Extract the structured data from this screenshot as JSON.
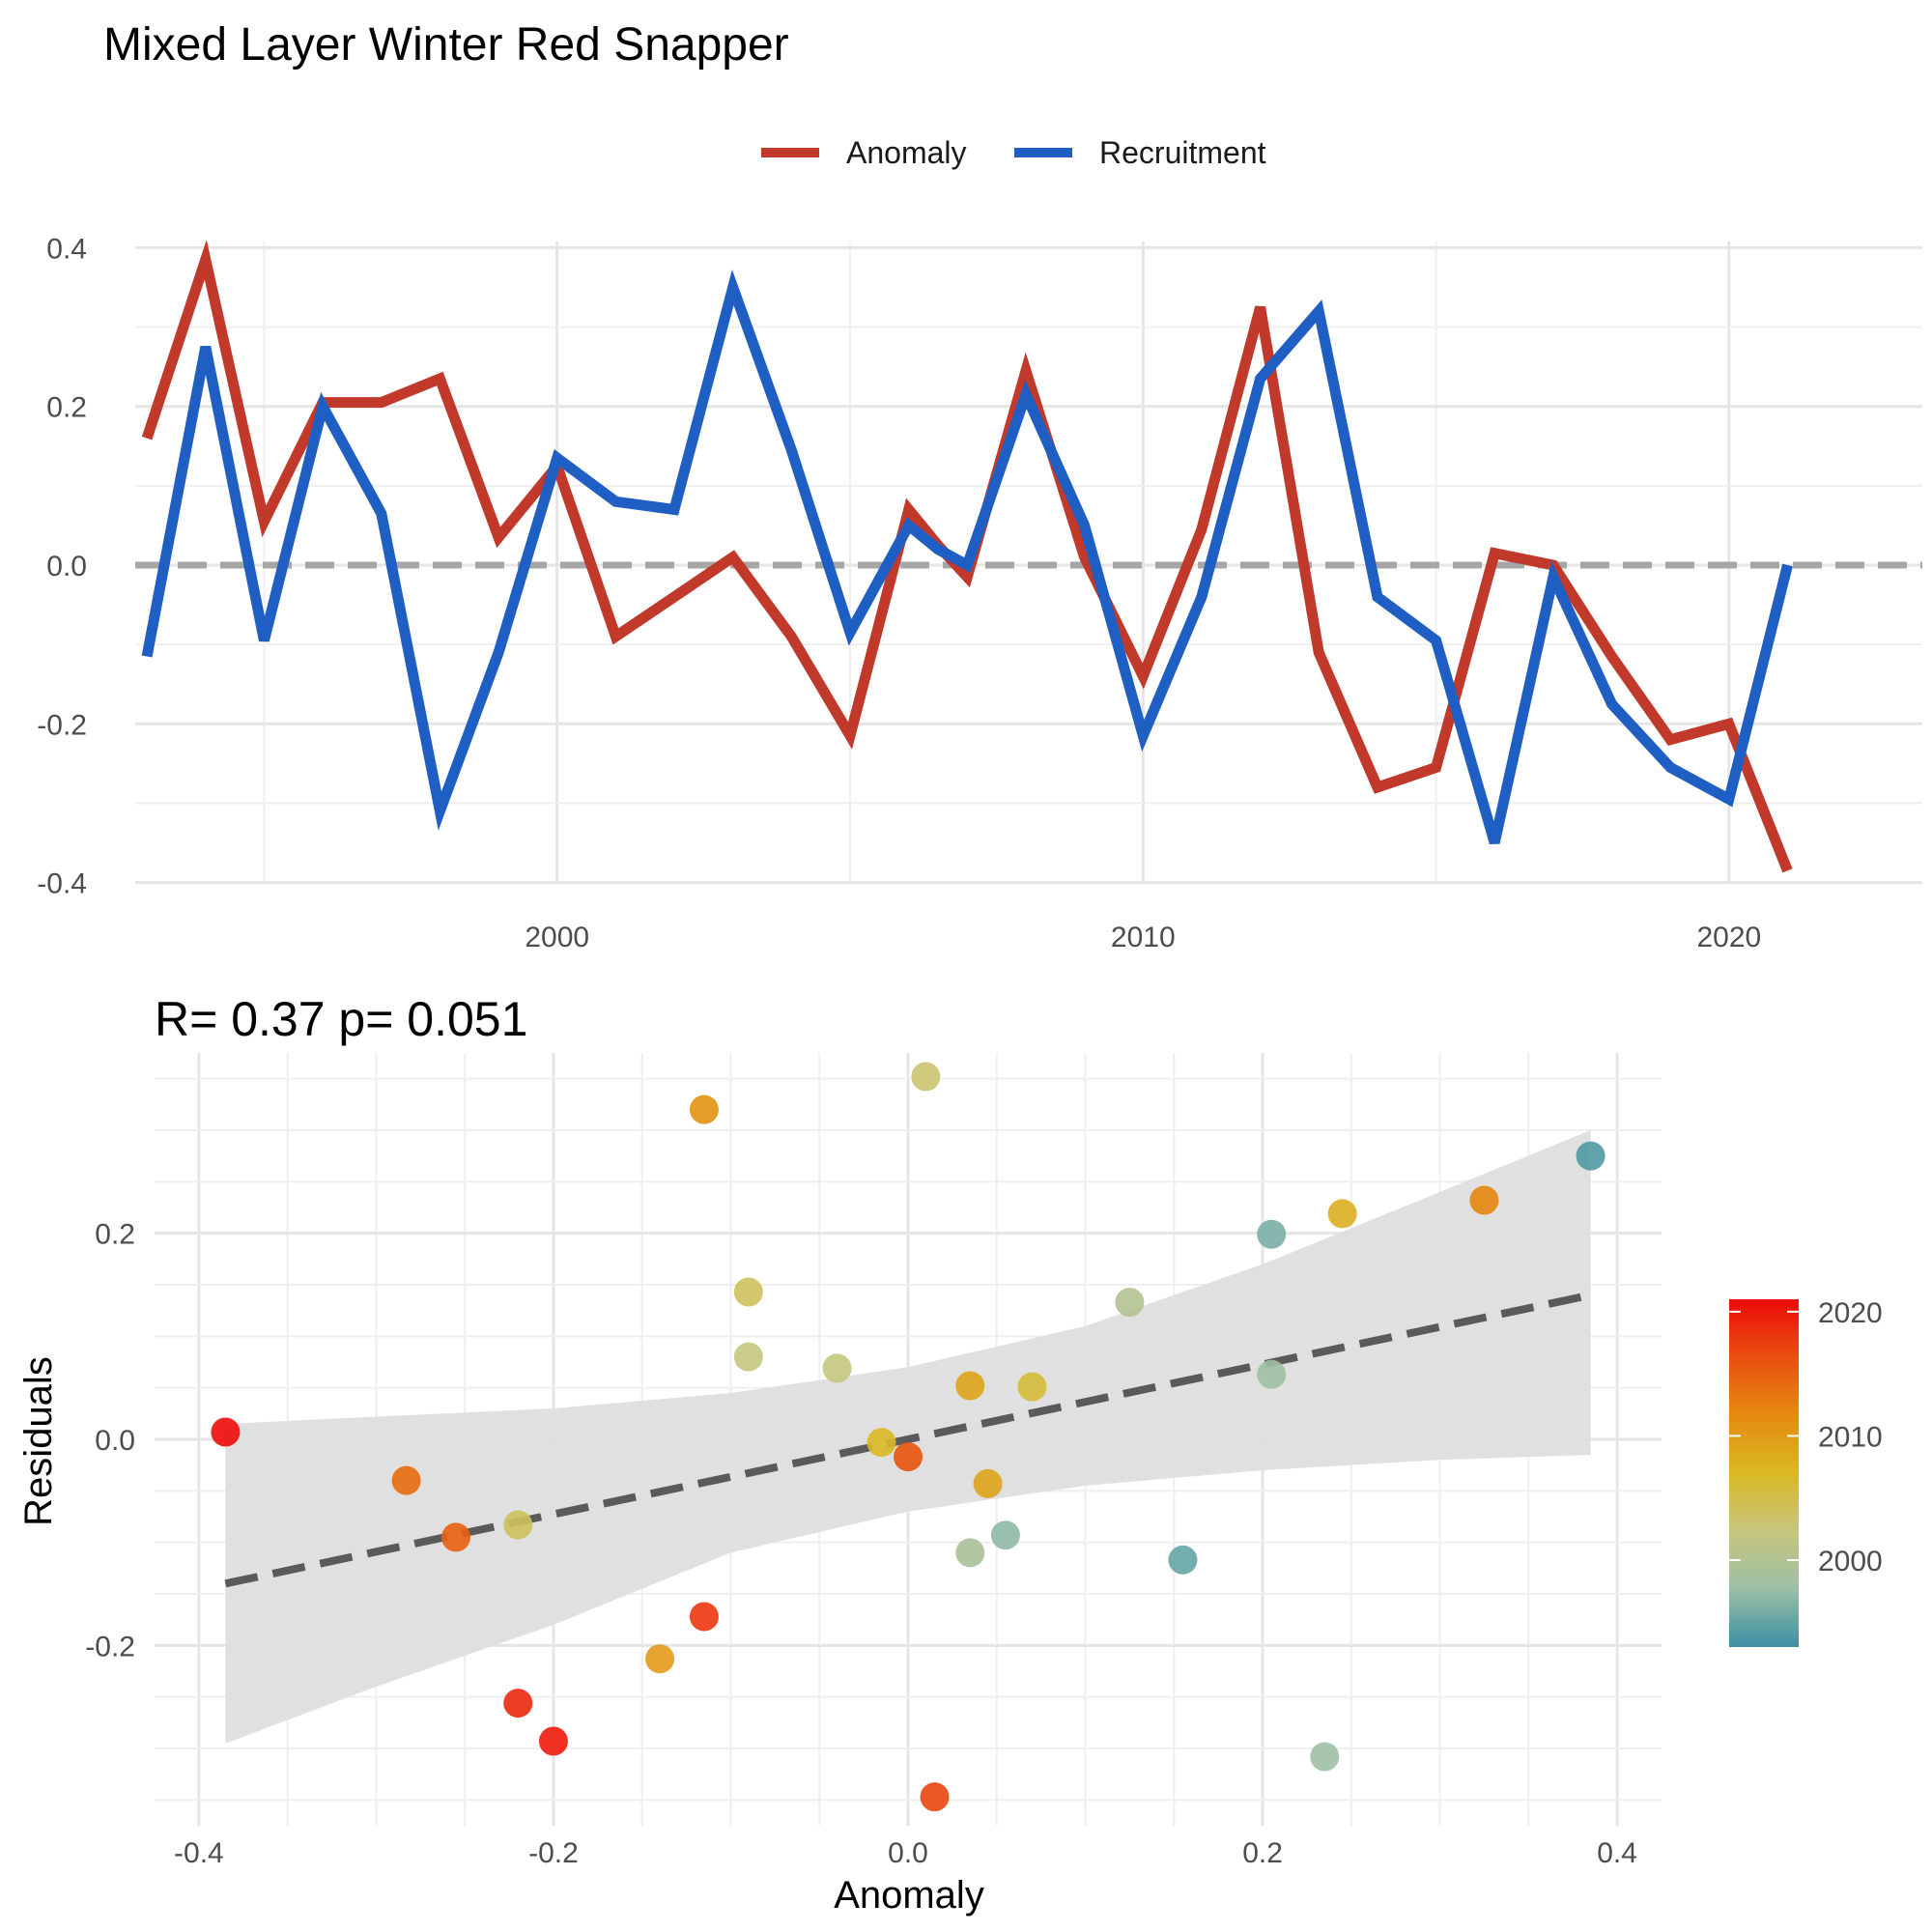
{
  "chart_data": [
    {
      "type": "line",
      "title": "Mixed Layer Winter Red Snapper",
      "xlabel": "",
      "ylabel": "",
      "x_ticks": [
        "2000",
        "2010",
        "2020"
      ],
      "y_ticks": [
        "0.4",
        "0.2",
        "0.0",
        "-0.2",
        "-0.4"
      ],
      "xlim": [
        1992.8,
        2023.3
      ],
      "ylim": [
        -0.42,
        0.42
      ],
      "grid": true,
      "legend_position": "top",
      "reference_line": {
        "y": 0.0,
        "style": "dashed",
        "color": "#a6a6a6"
      },
      "x": [
        1993,
        1994,
        1995,
        1996,
        1997,
        1998,
        1999,
        2000,
        2001,
        2002,
        2003,
        2004,
        2005,
        2006,
        2006.5,
        2007,
        2008,
        2009,
        2010,
        2011,
        2012,
        2013,
        2014,
        2015,
        2016,
        2017,
        2018,
        2019,
        2020,
        2021
      ],
      "series": [
        {
          "name": "Anomaly",
          "color": "#c0392b",
          "values": [
            0.16,
            0.385,
            0.055,
            0.205,
            0.205,
            0.235,
            0.035,
            0.125,
            -0.09,
            -0.04,
            0.01,
            -0.09,
            -0.215,
            0.07,
            0.025,
            -0.015,
            0.245,
            0.01,
            -0.14,
            0.045,
            0.325,
            -0.11,
            -0.28,
            -0.255,
            0.015,
            0.0,
            -0.115,
            -0.22,
            -0.2,
            -0.385
          ]
        },
        {
          "name": "Recruitment",
          "color": "#1f5fc4",
          "values": [
            -0.115,
            0.275,
            -0.095,
            0.2,
            0.065,
            -0.31,
            -0.11,
            0.135,
            0.08,
            0.07,
            0.35,
            0.145,
            -0.085,
            0.05,
            0.02,
            0.0,
            0.215,
            0.05,
            -0.215,
            -0.04,
            0.235,
            0.32,
            -0.04,
            -0.095,
            -0.35,
            -0.015,
            -0.175,
            -0.255,
            -0.295,
            0.0
          ]
        }
      ]
    },
    {
      "type": "scatter",
      "title": "R= 0.37  p= 0.051",
      "xlabel": "Anomaly",
      "ylabel": "Residuals",
      "x_ticks": [
        "-0.4",
        "-0.2",
        "0.0",
        "0.2",
        "0.4"
      ],
      "y_ticks": [
        "0.2",
        "0.0",
        "-0.2"
      ],
      "xlim": [
        -0.425,
        0.425
      ],
      "ylim": [
        -0.375,
        0.375
      ],
      "grid": true,
      "color_scale": {
        "title": "",
        "ticks": [
          "2020",
          "2010",
          "2000"
        ],
        "min_year": 1993,
        "max_year": 2021,
        "stops": [
          "#3b8fa3",
          "#9cbfa6",
          "#c7c67d",
          "#d9b824",
          "#e58a0e",
          "#e8500e",
          "#ee0a0a"
        ]
      },
      "regression": {
        "x_start": -0.385,
        "y_start": -0.14,
        "x_end": 0.385,
        "y_end": 0.14,
        "style": "dashed",
        "color": "#5a5a5a"
      },
      "confidence_band": {
        "x": [
          -0.385,
          -0.3,
          -0.2,
          -0.1,
          0.0,
          0.1,
          0.2,
          0.3,
          0.385
        ],
        "upper": [
          0.015,
          0.022,
          0.03,
          0.045,
          0.07,
          0.11,
          0.17,
          0.24,
          0.3
        ],
        "lower": [
          -0.295,
          -0.24,
          -0.18,
          -0.11,
          -0.07,
          -0.045,
          -0.03,
          -0.02,
          -0.015
        ],
        "color": "#dedede"
      },
      "points": [
        {
          "x": -0.385,
          "y": 0.007,
          "year": 2021
        },
        {
          "x": -0.283,
          "y": -0.04,
          "year": 2014
        },
        {
          "x": -0.255,
          "y": -0.095,
          "year": 2015
        },
        {
          "x": -0.22,
          "y": -0.083,
          "year": 2004
        },
        {
          "x": -0.22,
          "y": -0.256,
          "year": 2019
        },
        {
          "x": -0.2,
          "y": -0.293,
          "year": 2020
        },
        {
          "x": -0.14,
          "y": -0.213,
          "year": 2010
        },
        {
          "x": -0.115,
          "y": 0.32,
          "year": 2011
        },
        {
          "x": -0.115,
          "y": -0.172,
          "year": 2018
        },
        {
          "x": -0.09,
          "y": 0.143,
          "year": 2004
        },
        {
          "x": -0.09,
          "y": 0.08,
          "year": 2002
        },
        {
          "x": -0.04,
          "y": 0.069,
          "year": 2002
        },
        {
          "x": -0.015,
          "y": -0.003,
          "year": 2007
        },
        {
          "x": 0.0,
          "y": -0.017,
          "year": 2016
        },
        {
          "x": 0.01,
          "y": 0.352,
          "year": 2003
        },
        {
          "x": 0.015,
          "y": -0.347,
          "year": 2017
        },
        {
          "x": 0.035,
          "y": 0.052,
          "year": 2009
        },
        {
          "x": 0.035,
          "y": -0.11,
          "year": 1999
        },
        {
          "x": 0.045,
          "y": -0.043,
          "year": 2009
        },
        {
          "x": 0.055,
          "y": -0.093,
          "year": 1997
        },
        {
          "x": 0.07,
          "y": 0.051,
          "year": 2006
        },
        {
          "x": 0.125,
          "y": 0.133,
          "year": 2000
        },
        {
          "x": 0.155,
          "y": -0.117,
          "year": 1995
        },
        {
          "x": 0.205,
          "y": 0.199,
          "year": 1996
        },
        {
          "x": 0.205,
          "y": 0.063,
          "year": 1998
        },
        {
          "x": 0.235,
          "y": -0.308,
          "year": 1998
        },
        {
          "x": 0.245,
          "y": 0.219,
          "year": 2008
        },
        {
          "x": 0.325,
          "y": 0.232,
          "year": 2012
        },
        {
          "x": 0.385,
          "y": 0.275,
          "year": 1994
        }
      ]
    }
  ]
}
